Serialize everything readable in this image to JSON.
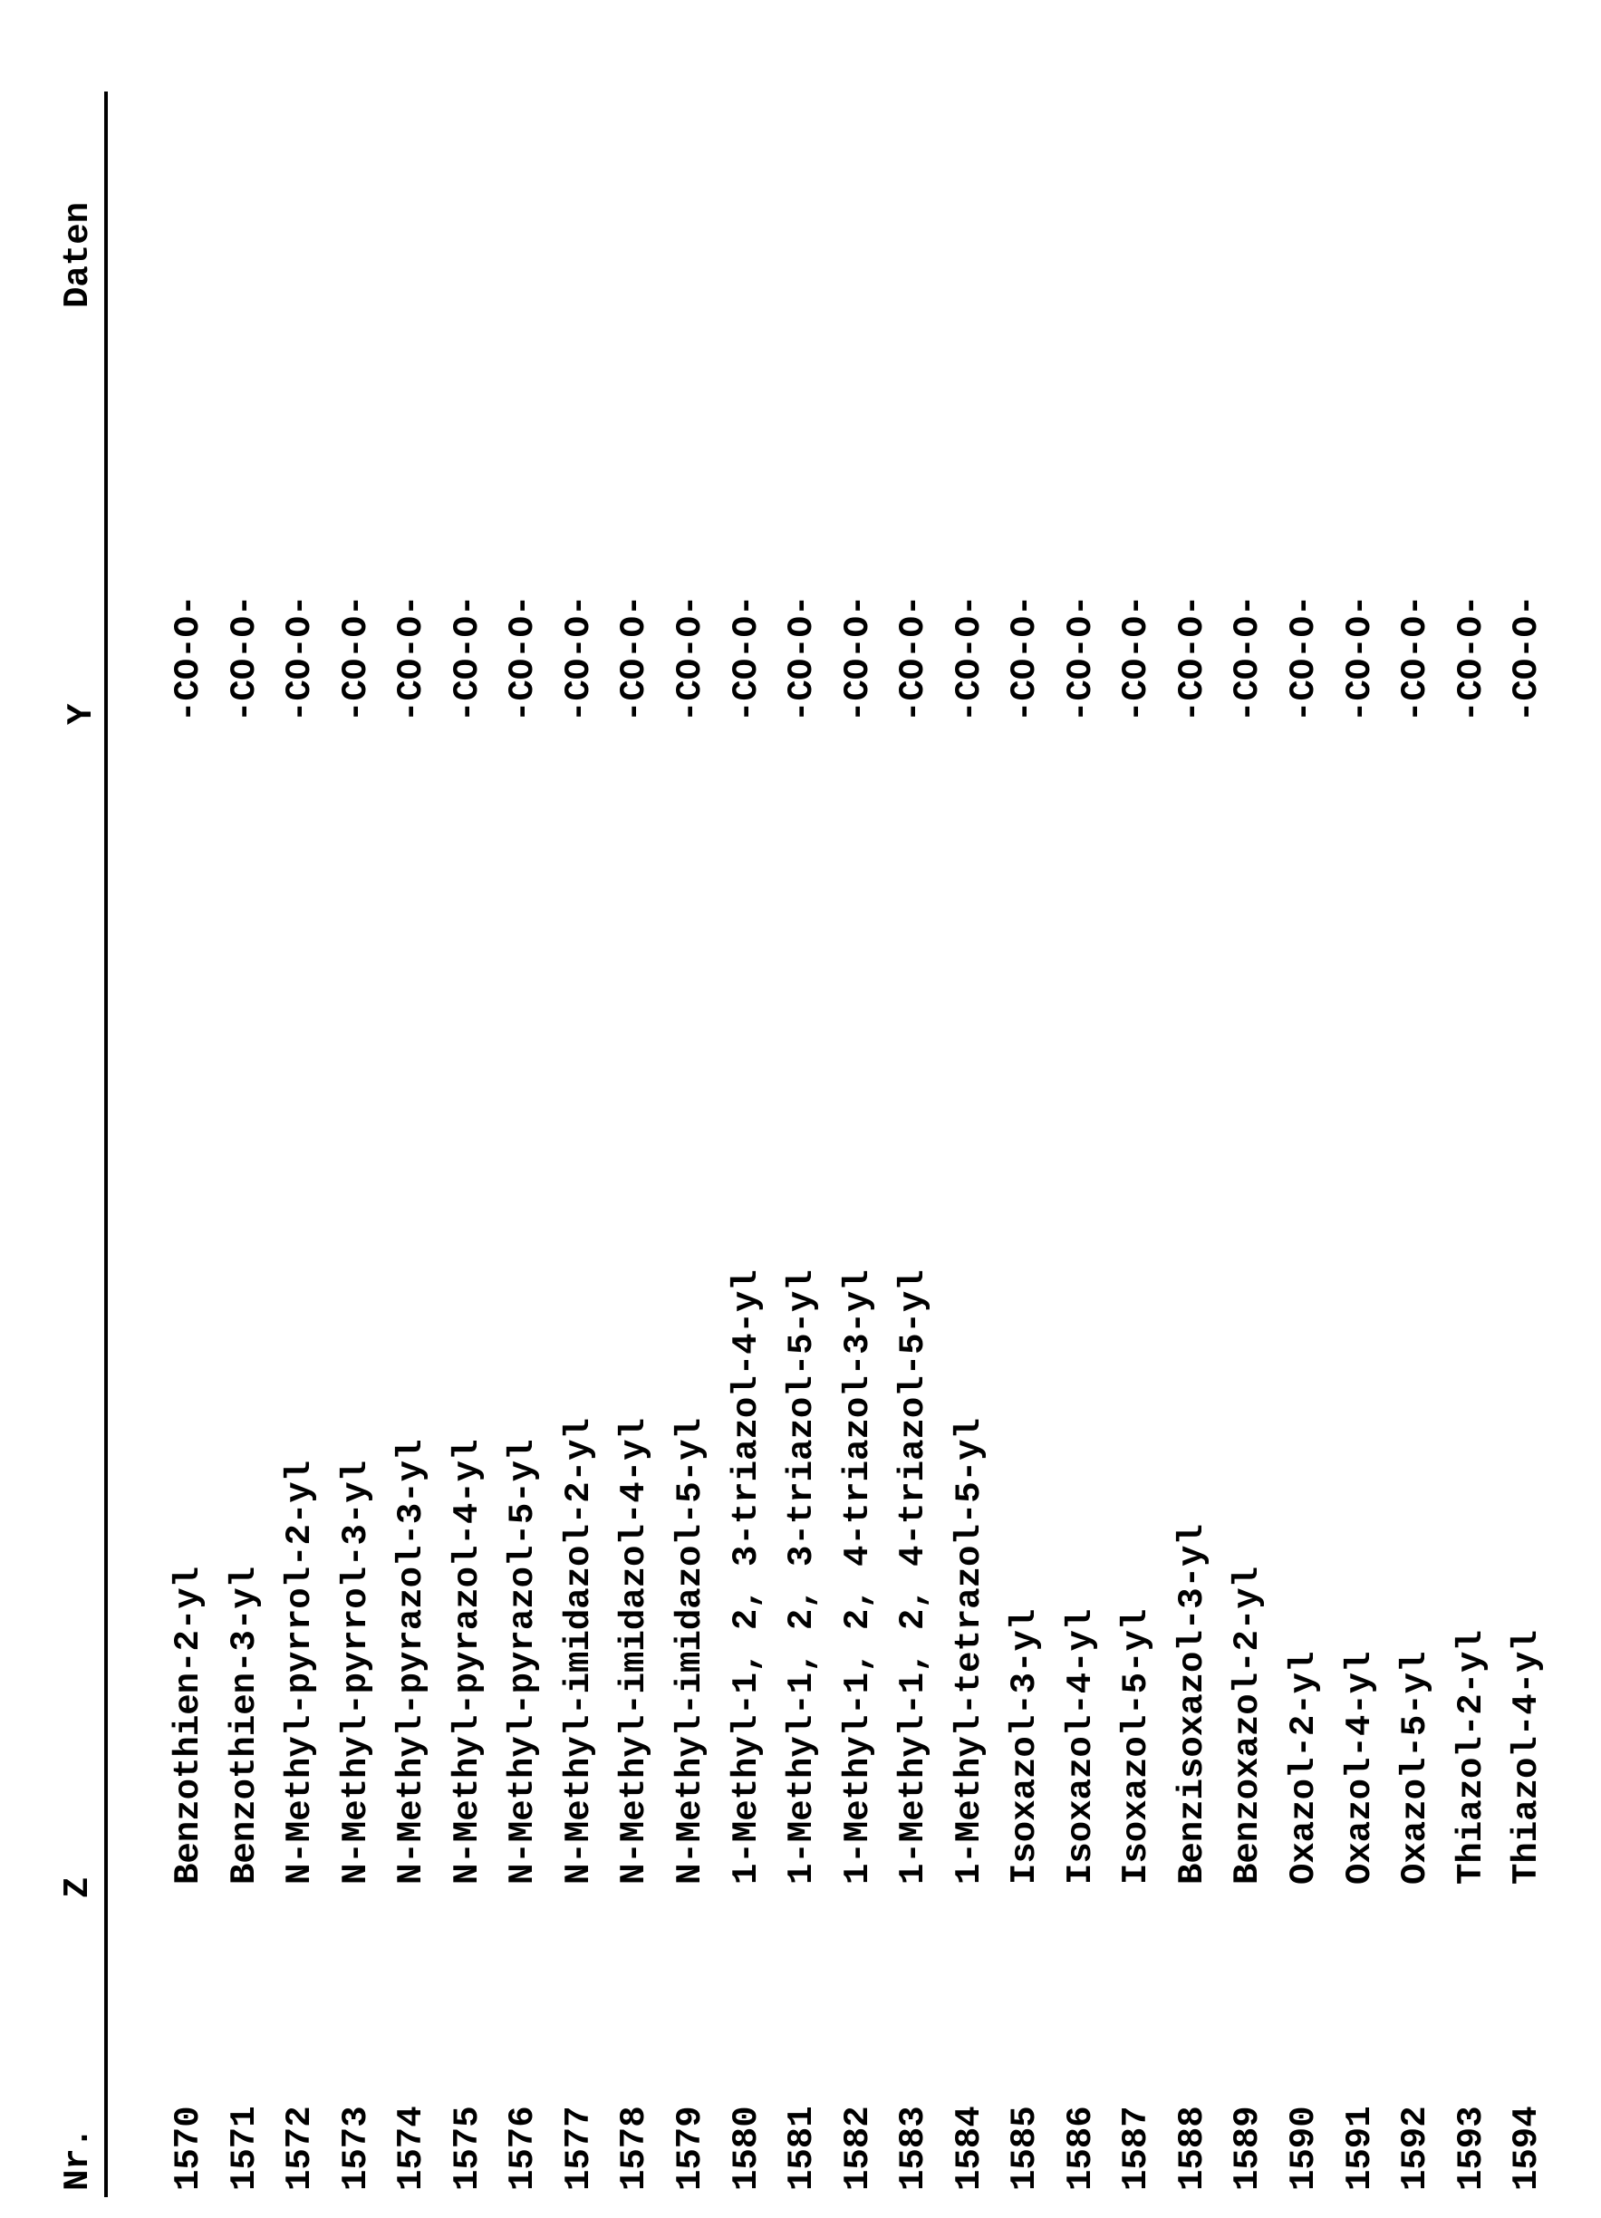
{
  "headers": {
    "nr": "Nr.",
    "z": "Z",
    "y": "Y",
    "daten": "Daten"
  },
  "rows": [
    {
      "nr": "1570",
      "z": "Benzothien-2-yl",
      "y": "-CO-O-"
    },
    {
      "nr": "1571",
      "z": "Benzothien-3-yl",
      "y": "-CO-O-"
    },
    {
      "nr": "1572",
      "z": "N-Methyl-pyrrol-2-yl",
      "y": "-CO-O-"
    },
    {
      "nr": "1573",
      "z": "N-Methyl-pyrrol-3-yl",
      "y": "-CO-O-"
    },
    {
      "nr": "1574",
      "z": "N-Methyl-pyrazol-3-yl",
      "y": "-CO-O-"
    },
    {
      "nr": "1575",
      "z": "N-Methyl-pyrazol-4-yl",
      "y": "-CO-O-"
    },
    {
      "nr": "1576",
      "z": "N-Methyl-pyrazol-5-yl",
      "y": "-CO-O-"
    },
    {
      "nr": "1577",
      "z": "N-Methyl-imidazol-2-yl",
      "y": "-CO-O-"
    },
    {
      "nr": "1578",
      "z": "N-Methyl-imidazol-4-yl",
      "y": "-CO-O-"
    },
    {
      "nr": "1579",
      "z": "N-Methyl-imidazol-5-yl",
      "y": "-CO-O-"
    },
    {
      "nr": "1580",
      "z": "1-Methyl-1, 2, 3-triazol-4-yl",
      "y": "-CO-O-"
    },
    {
      "nr": "1581",
      "z": "1-Methyl-1, 2, 3-triazol-5-yl",
      "y": "-CO-O-"
    },
    {
      "nr": "1582",
      "z": "1-Methyl-1, 2, 4-triazol-3-yl",
      "y": "-CO-O-"
    },
    {
      "nr": "1583",
      "z": "1-Methyl-1, 2, 4-triazol-5-yl",
      "y": "-CO-O-"
    },
    {
      "nr": "1584",
      "z": "1-Methyl-tetrazol-5-yl",
      "y": "-CO-O-"
    },
    {
      "nr": "1585",
      "z": "Isoxazol-3-yl",
      "y": "-CO-O-"
    },
    {
      "nr": "1586",
      "z": "Isoxazol-4-yl",
      "y": "-CO-O-"
    },
    {
      "nr": "1587",
      "z": "Isoxazol-5-yl",
      "y": "-CO-O-"
    },
    {
      "nr": "1588",
      "z": "Benzisoxazol-3-yl",
      "y": "-CO-O-"
    },
    {
      "nr": "1589",
      "z": "Benzoxazol-2-yl",
      "y": "-CO-O-"
    },
    {
      "nr": "1590",
      "z": "Oxazol-2-yl",
      "y": "-CO-O-"
    },
    {
      "nr": "1591",
      "z": "Oxazol-4-yl",
      "y": "-CO-O-"
    },
    {
      "nr": "1592",
      "z": "Oxazol-5-yl",
      "y": "-CO-O-"
    },
    {
      "nr": "1593",
      "z": "Thiazol-2-yl",
      "y": "-CO-O-"
    },
    {
      "nr": "1594",
      "z": "Thiazol-4-yl",
      "y": "-CO-O-"
    }
  ]
}
